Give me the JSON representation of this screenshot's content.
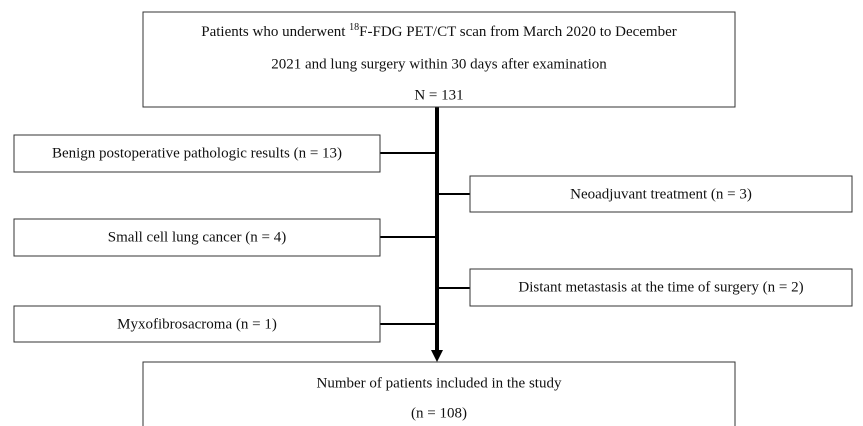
{
  "top_box": {
    "line1_start": "Patients who underwent ",
    "line1_superscript": "18",
    "line1_end": "F-FDG PET/CT scan from March 2020 to December",
    "line2": "2021 and lung surgery within 30 days after examination",
    "line3": "N = 131"
  },
  "exclusions": [
    {
      "label": "Benign postoperative pathologic results (n = 13)"
    },
    {
      "label": "Neoadjuvant treatment (n = 3)"
    },
    {
      "label": "Small cell lung cancer (n = 4)"
    },
    {
      "label": "Distant metastasis at the time of surgery (n = 2)"
    },
    {
      "label": "Myxofibrosacroma (n = 1)"
    }
  ],
  "bottom_box": {
    "line1": "Number of patients included in the study",
    "line2": "(n = 108)"
  }
}
